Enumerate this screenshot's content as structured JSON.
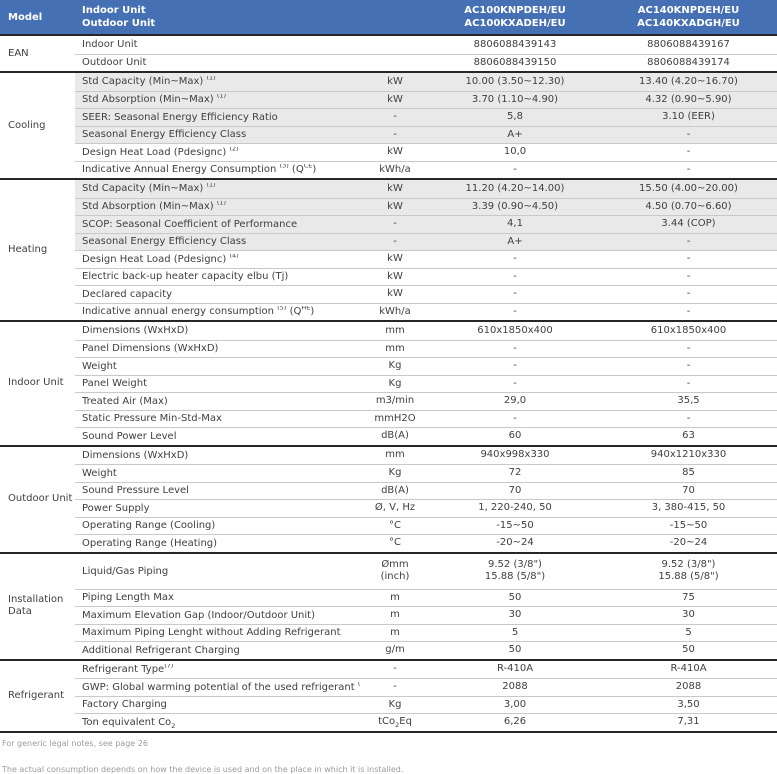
{
  "header": {
    "model_label": "Model",
    "row_labels": [
      "Indoor Unit",
      "Outdoor Unit"
    ],
    "col1": [
      "AC100KNPDEH/EU",
      "AC100KXADEH/EU"
    ],
    "col2": [
      "AC140KNPDEH/EU",
      "AC140KXADGH/EU"
    ]
  },
  "sections": [
    {
      "name": "EAN",
      "rows": [
        {
          "label": "Indoor Unit",
          "v1": "8806088439143",
          "v2": "8806088439167"
        },
        {
          "label": "Outdoor Unit",
          "v1": "8806088439150",
          "v2": "8806088439174"
        }
      ]
    },
    {
      "name": "Cooling",
      "rows": [
        {
          "label": "Std Capacity (Min~Max) ",
          "sup": "(1)",
          "unit": "kW",
          "v1": "10.00 (3.50~12.30)",
          "v2": "13.40 (4.20~16.70)"
        },
        {
          "label": "Std Absorption (Min~Max) ",
          "sup": "(1)",
          "unit": "kW",
          "v1": "3.70 (1.10~4.90)",
          "v2": "4.32 (0.90~5.90)"
        },
        {
          "label": "SEER: Seasonal Energy Efficiency Ratio",
          "unit": "-",
          "v1": "5,8",
          "v2": "3.10 (EER)"
        },
        {
          "label": "Seasonal Energy Efficiency Class",
          "unit": "-",
          "v1": "A+",
          "v2": "-"
        },
        {
          "label": "Design Heat Load (Pdesignc) ",
          "sup": "(2)",
          "unit": "kW",
          "v1": "10,0",
          "v2": "-"
        },
        {
          "label": "Indicative Annual Energy Consumption ",
          "sup": "(3)",
          "label2": " (Q",
          "sup2": "CE",
          "label3": ")",
          "unit": "kWh/a",
          "v1": "-",
          "v2": "-"
        }
      ]
    },
    {
      "name": "Heating",
      "rows": [
        {
          "label": "Std Capacity (Min~Max) ",
          "sup": "(1)",
          "unit": "kW",
          "v1": "11.20 (4.20~14.00)",
          "v2": "15.50 (4.00~20.00)"
        },
        {
          "label": "Std Absorption (Min~Max) ",
          "sup": "(1)",
          "unit": "kW",
          "v1": "3.39 (0.90~4.50)",
          "v2": "4.50 (0.70~6.60)"
        },
        {
          "label": "SCOP: Seasonal Coefficient of Performance",
          "unit": "-",
          "v1": "4,1",
          "v2": "3.44 (COP)"
        },
        {
          "label": "Seasonal Energy Efficiency Class",
          "unit": "-",
          "v1": "A+",
          "v2": "-"
        },
        {
          "label": "Design Heat Load (Pdesignc) ",
          "sup": "(4)",
          "unit": "kW",
          "v1": "-",
          "v2": "-"
        },
        {
          "label": "Electric back-up heater capacity elbu (Tj)",
          "unit": "kW",
          "v1": "-",
          "v2": "-"
        },
        {
          "label": "Declared capacity",
          "unit": "kW",
          "v1": "-",
          "v2": "-"
        },
        {
          "label": "Indicative annual energy consumption ",
          "sup": "(5)",
          "label2": " (Q",
          "sup2": "HE",
          "label3": ")",
          "unit": "kWh/a",
          "v1": "-",
          "v2": "-"
        }
      ]
    },
    {
      "name": "Indoor Unit",
      "rows": [
        {
          "label": "Dimensions (WxHxD)",
          "unit": "mm",
          "v1": "610x1850x400",
          "v2": "610x1850x400"
        },
        {
          "label": "Panel Dimensions (WxHxD)",
          "unit": "mm",
          "v1": "-",
          "v2": "-"
        },
        {
          "label": "Weight",
          "unit": "Kg",
          "v1": "-",
          "v2": "-"
        },
        {
          "label": "Panel Weight",
          "unit": "Kg",
          "v1": "-",
          "v2": "-"
        },
        {
          "label": "Treated Air (Max)",
          "unit": "m3/min",
          "v1": "29,0",
          "v2": "35,5"
        },
        {
          "label": "Static Pressure Min-Std-Max",
          "unit": "mmH2O",
          "v1": "-",
          "v2": "-"
        },
        {
          "label": "Sound Power Level",
          "unit": "dB(A)",
          "v1": "60",
          "v2": "63"
        }
      ]
    },
    {
      "name": "Outdoor Unit",
      "rows": [
        {
          "label": "Dimensions (WxHxD)",
          "unit": "mm",
          "v1": "940x998x330",
          "v2": "940x1210x330"
        },
        {
          "label": "Weight",
          "unit": "Kg",
          "v1": "72",
          "v2": "85"
        },
        {
          "label": "Sound Pressure Level",
          "unit": "dB(A)",
          "v1": "70",
          "v2": "70"
        },
        {
          "label": "Power Supply",
          "unit": "Ø, V, Hz",
          "v1": "1, 220-240, 50",
          "v2": "3, 380-415, 50"
        },
        {
          "label": "Operating Range (Cooling)",
          "unit": "°C",
          "v1": "-15~50",
          "v2": "-15~50"
        },
        {
          "label": "Operating Range (Heating)",
          "unit": "°C",
          "v1": "-20~24",
          "v2": "-20~24"
        }
      ]
    },
    {
      "name": "Installation Data",
      "rows": [
        {
          "label": "Liquid/Gas Piping",
          "unit": "Ømm",
          "unit_line2": "(inch)",
          "v1": "9.52 (3/8\")",
          "v1_line2": "15.88 (5/8\")",
          "v2": "9.52 (3/8\")",
          "v2_line2": "15.88 (5/8\")"
        },
        {
          "label": "Piping Length Max",
          "unit": "m",
          "v1": "50",
          "v2": "75"
        },
        {
          "label": "Maximum Elevation Gap (Indoor/Outdoor Unit)",
          "unit": "m",
          "v1": "30",
          "v2": "30"
        },
        {
          "label": "Maximum Piping Lenght without Adding Refrigerant",
          "unit": "m",
          "v1": "5",
          "v2": "5"
        },
        {
          "label": "Additional Refrigerant Charging",
          "unit": "g/m",
          "v1": "50",
          "v2": "50"
        }
      ]
    },
    {
      "name": "Refrigerant",
      "rows": [
        {
          "label": "Refrigerant Type",
          "sup": "(7)",
          "unit": "-",
          "v1": "R-410A",
          "v2": "R-410A"
        },
        {
          "label": "GWP: Global warming potential of the used refrigerant ",
          "sup": "(7)",
          "unit": "-",
          "v1": "2088",
          "v2": "2088"
        },
        {
          "label": "Factory Charging",
          "unit": "Kg",
          "v1": "3,00",
          "v2": "3,50"
        },
        {
          "label": "Ton equivalent Co",
          "label_sub": "2",
          "unit": "tCo",
          "unit_sub": "2",
          "unit2": "Eq",
          "v1": "6,26",
          "v2": "7,31"
        }
      ]
    }
  ],
  "notes": [
    "For generic legal notes, see page 26",
    "The actual consumption depends on how the device is used and on the place in which it is installed."
  ],
  "colors": {
    "header_blue": "#4570b4",
    "shaded_row": "#e9e9e9",
    "section_border": "#262626",
    "row_divider": "#c9c9c9"
  }
}
